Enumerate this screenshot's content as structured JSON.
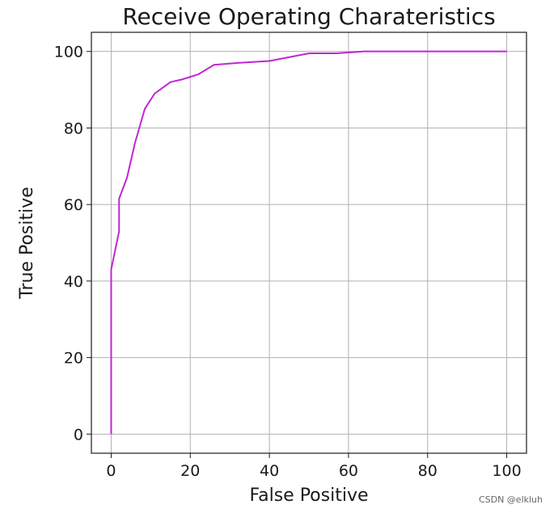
{
  "chart_data": {
    "type": "line",
    "title": "Receive Operating Charateristics",
    "xlabel": "False Positive",
    "ylabel": "True Positive",
    "xlim": [
      -5,
      105
    ],
    "ylim": [
      -5,
      105
    ],
    "xticks": [
      0,
      20,
      40,
      60,
      80,
      100
    ],
    "yticks": [
      0,
      20,
      40,
      60,
      80,
      100
    ],
    "grid": true,
    "series": [
      {
        "color": "#c026d3",
        "x": [
          0,
          0,
          2,
          2,
          4,
          6,
          8.5,
          11,
          15,
          18,
          22,
          26,
          32,
          40,
          45,
          50,
          57,
          64,
          70,
          100
        ],
        "y": [
          0,
          43,
          53,
          61.5,
          67,
          76,
          85,
          89,
          92,
          92.7,
          94,
          96.5,
          97,
          97.5,
          98.5,
          99.5,
          99.5,
          100,
          100,
          100
        ]
      }
    ]
  },
  "watermark": "CSDN @elkluh"
}
